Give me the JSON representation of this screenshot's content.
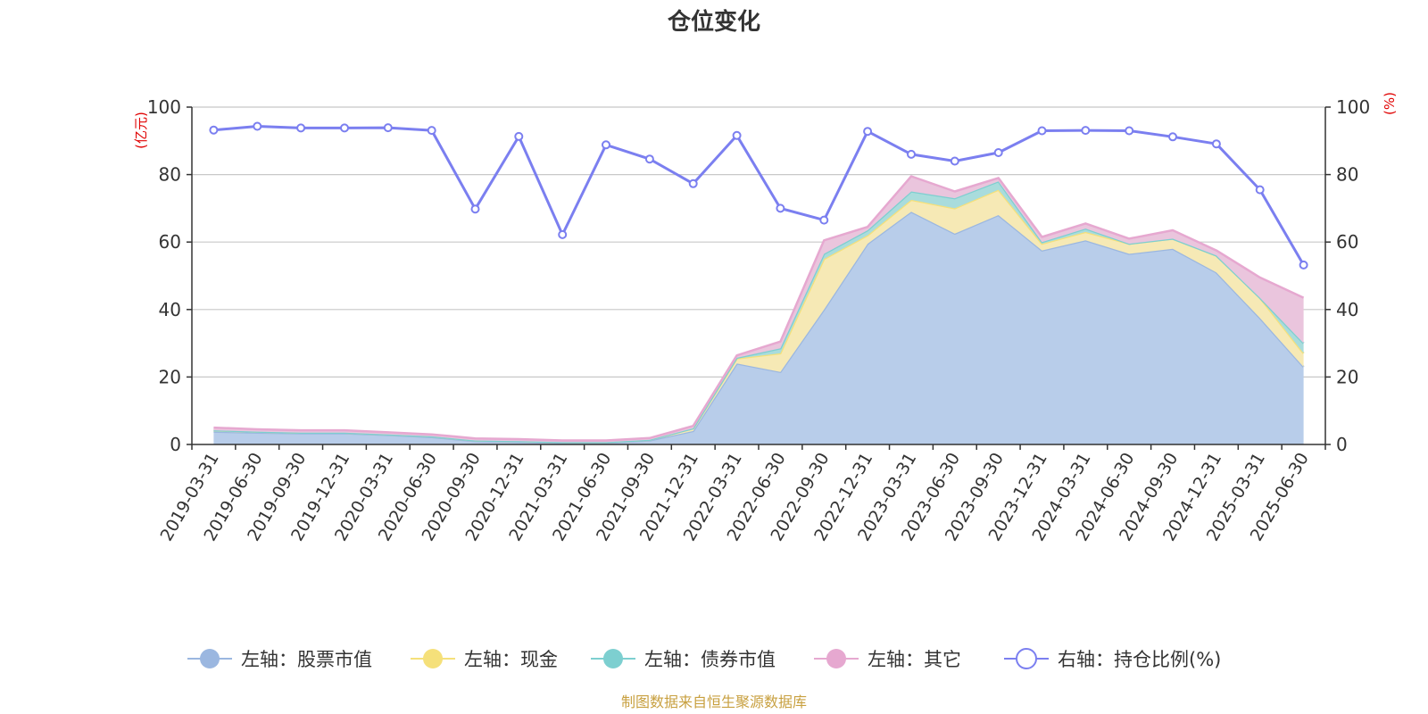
{
  "chart_data": {
    "type": "area",
    "title": "仓位变化",
    "left_unit": "(亿元)",
    "right_unit": "(%)",
    "categories": [
      "2019-03-31",
      "2019-06-30",
      "2019-09-30",
      "2019-12-31",
      "2020-03-31",
      "2020-06-30",
      "2020-09-30",
      "2020-12-31",
      "2021-03-31",
      "2021-06-30",
      "2021-09-30",
      "2021-12-31",
      "2022-03-31",
      "2022-06-30",
      "2022-09-30",
      "2022-12-31",
      "2023-03-31",
      "2023-06-30",
      "2023-09-30",
      "2023-12-31",
      "2024-03-31",
      "2024-06-30",
      "2024-09-30",
      "2024-12-31",
      "2025-03-31",
      "2025-06-30"
    ],
    "ylim_left": [
      0,
      100
    ],
    "ylim_right": [
      0,
      100
    ],
    "yticks": [
      0,
      20,
      40,
      60,
      80,
      100
    ],
    "grid": true,
    "legend_position": "bottom",
    "series": [
      {
        "name": "左轴：股票市值",
        "axis": "left",
        "color": "#9bb7e0",
        "fill": "#b8cdea",
        "values": [
          3.8,
          3.5,
          3.3,
          3.3,
          2.8,
          2.2,
          1.0,
          0.8,
          0.5,
          0.5,
          1.2,
          4.0,
          24.0,
          21.5,
          40.0,
          59.5,
          69.0,
          62.5,
          68.0,
          57.5,
          60.5,
          56.5,
          58.0,
          51.0,
          37.5,
          23.0
        ]
      },
      {
        "name": "左轴：现金",
        "axis": "left",
        "color": "#f5e07a",
        "fill": "#f6e9b5",
        "values": [
          0.4,
          0.3,
          0.2,
          0.2,
          0.2,
          0.2,
          0.2,
          0.2,
          0.2,
          0.2,
          0.2,
          0.8,
          1.5,
          5.5,
          15.0,
          2.5,
          3.5,
          7.5,
          7.5,
          2.0,
          2.5,
          3.0,
          3.0,
          5.0,
          6.0,
          4.0
        ]
      },
      {
        "name": "左轴：债券市值",
        "axis": "left",
        "color": "#7dcfd0",
        "fill": "#a9dcdc",
        "values": [
          0,
          0,
          0,
          0,
          0,
          0,
          0,
          0,
          0,
          0,
          0,
          0,
          0.2,
          1.5,
          1.5,
          1.5,
          2.5,
          3.0,
          2.5,
          0.5,
          1.0,
          0,
          0,
          0,
          0,
          3.0
        ]
      },
      {
        "name": "左轴：其它",
        "axis": "left",
        "color": "#e6a8d0",
        "fill": "#eac5dd",
        "values": [
          0.8,
          0.7,
          0.7,
          0.7,
          0.6,
          0.6,
          0.6,
          0.6,
          0.5,
          0.5,
          0.5,
          0.7,
          0.7,
          2.0,
          4.0,
          1.0,
          4.5,
          2.0,
          1.0,
          1.5,
          1.5,
          1.5,
          2.5,
          1.5,
          6.0,
          13.5
        ]
      },
      {
        "name": "右轴：持仓比例(%)",
        "axis": "right",
        "color": "#7b7ff0",
        "values": [
          93.2,
          94.3,
          93.8,
          93.8,
          93.9,
          93.1,
          69.8,
          91.3,
          62.2,
          88.8,
          84.6,
          77.3,
          91.6,
          70.0,
          66.5,
          92.8,
          86.0,
          84.0,
          86.5,
          93.0,
          93.1,
          93.0,
          91.2,
          89.1,
          75.5,
          53.2
        ]
      }
    ],
    "source": "制图数据来自恒生聚源数据库"
  }
}
